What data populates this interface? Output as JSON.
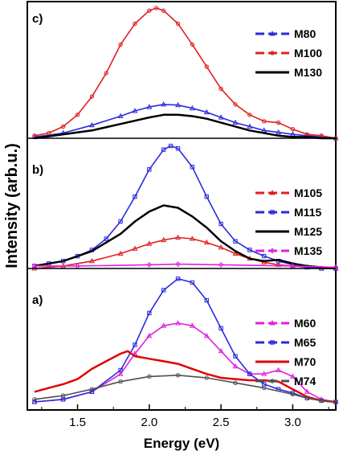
{
  "chart_data": {
    "type": "line",
    "xlabel": "Energy (eV)",
    "ylabel": "Intensity (arb.u.)",
    "xlim": [
      1.15,
      3.3
    ],
    "xticks": [
      "1.5",
      "2.0",
      "2.5",
      "3.0"
    ],
    "grid": false,
    "panels": [
      {
        "label": "c)",
        "ylim": [
          0,
          1.0
        ],
        "legend_position": "top-right",
        "series": [
          {
            "name": "M80",
            "color": "#2a2ae0",
            "style": "dash-triangle",
            "x": [
              1.2,
              1.4,
              1.6,
              1.8,
              1.9,
              2.0,
              2.1,
              2.2,
              2.3,
              2.4,
              2.5,
              2.6,
              2.7,
              2.8,
              2.9,
              3.0,
              3.1,
              3.2,
              3.3
            ],
            "y": [
              0.01,
              0.04,
              0.1,
              0.17,
              0.21,
              0.24,
              0.26,
              0.255,
              0.23,
              0.2,
              0.16,
              0.12,
              0.09,
              0.06,
              0.045,
              0.03,
              0.02,
              0.01,
              0.0
            ]
          },
          {
            "name": "M100",
            "color": "#e02020",
            "style": "dash-circle",
            "x": [
              1.2,
              1.3,
              1.4,
              1.5,
              1.6,
              1.7,
              1.8,
              1.9,
              2.0,
              2.05,
              2.1,
              2.2,
              2.3,
              2.4,
              2.5,
              2.6,
              2.7,
              2.8,
              2.9,
              3.0,
              3.1,
              3.2,
              3.3
            ],
            "y": [
              0.02,
              0.04,
              0.09,
              0.18,
              0.32,
              0.5,
              0.72,
              0.88,
              0.98,
              1.0,
              0.98,
              0.88,
              0.72,
              0.55,
              0.38,
              0.26,
              0.18,
              0.13,
              0.12,
              0.07,
              0.03,
              0.02,
              0.0
            ]
          },
          {
            "name": "M130",
            "color": "#000000",
            "style": "solid",
            "x": [
              1.2,
              1.4,
              1.6,
              1.8,
              2.0,
              2.1,
              2.2,
              2.3,
              2.4,
              2.5,
              2.6,
              2.7,
              2.8,
              2.9,
              3.0,
              3.1,
              3.2,
              3.3
            ],
            "y": [
              0.0,
              0.03,
              0.06,
              0.11,
              0.16,
              0.18,
              0.18,
              0.17,
              0.15,
              0.12,
              0.09,
              0.06,
              0.04,
              0.02,
              0.01,
              0.01,
              0.0,
              0.0
            ]
          }
        ]
      },
      {
        "label": "b)",
        "ylim": [
          0,
          1.0
        ],
        "legend_position": "top-right",
        "series": [
          {
            "name": "M105",
            "color": "#e02020",
            "style": "dash-triangle",
            "x": [
              1.2,
              1.4,
              1.6,
              1.8,
              1.9,
              2.0,
              2.1,
              2.2,
              2.3,
              2.4,
              2.5,
              2.6,
              2.7,
              2.8,
              2.9,
              3.0,
              3.1,
              3.2,
              3.3
            ],
            "y": [
              0.0,
              0.02,
              0.06,
              0.12,
              0.16,
              0.2,
              0.23,
              0.25,
              0.24,
              0.21,
              0.17,
              0.12,
              0.08,
              0.05,
              0.03,
              0.02,
              0.01,
              0.0,
              0.0
            ]
          },
          {
            "name": "M115",
            "color": "#2a2ae0",
            "style": "dash-square",
            "x": [
              1.2,
              1.3,
              1.4,
              1.5,
              1.6,
              1.7,
              1.8,
              1.9,
              2.0,
              2.1,
              2.15,
              2.2,
              2.3,
              2.4,
              2.5,
              2.6,
              2.7,
              2.8,
              2.9,
              3.0,
              3.1,
              3.2,
              3.3
            ],
            "y": [
              0.02,
              0.04,
              0.06,
              0.1,
              0.15,
              0.24,
              0.38,
              0.58,
              0.8,
              0.96,
              0.99,
              0.97,
              0.82,
              0.58,
              0.36,
              0.22,
              0.15,
              0.1,
              0.06,
              0.03,
              0.01,
              0.0,
              0.0
            ]
          },
          {
            "name": "M125",
            "color": "#000000",
            "style": "solid",
            "x": [
              1.2,
              1.4,
              1.6,
              1.8,
              1.9,
              2.0,
              2.1,
              2.2,
              2.3,
              2.4,
              2.5,
              2.6,
              2.7,
              2.8,
              2.9,
              3.0,
              3.1,
              3.2,
              3.3
            ],
            "y": [
              0.02,
              0.06,
              0.14,
              0.28,
              0.38,
              0.46,
              0.51,
              0.49,
              0.42,
              0.33,
              0.22,
              0.14,
              0.08,
              0.06,
              0.07,
              0.04,
              0.02,
              0.01,
              0.0
            ]
          },
          {
            "name": "M135",
            "color": "#e020e0",
            "style": "dash-diamond",
            "x": [
              1.2,
              1.5,
              2.0,
              2.2,
              2.5,
              3.0,
              3.3
            ],
            "y": [
              0.02,
              0.02,
              0.03,
              0.035,
              0.03,
              0.02,
              0.01
            ]
          }
        ]
      },
      {
        "label": "a)",
        "ylim": [
          0,
          1.0
        ],
        "legend_position": "top-right",
        "series": [
          {
            "name": "M60",
            "color": "#e020e0",
            "style": "dash-triangle",
            "x": [
              1.2,
              1.4,
              1.6,
              1.8,
              1.9,
              2.0,
              2.1,
              2.2,
              2.3,
              2.4,
              2.5,
              2.6,
              2.7,
              2.8,
              2.9,
              3.0,
              3.1,
              3.2,
              3.3
            ],
            "y": [
              0.0,
              0.02,
              0.08,
              0.22,
              0.38,
              0.52,
              0.6,
              0.62,
              0.6,
              0.52,
              0.4,
              0.28,
              0.22,
              0.22,
              0.25,
              0.2,
              0.08,
              0.02,
              0.0
            ]
          },
          {
            "name": "M65",
            "color": "#2a2ae0",
            "style": "dash-square",
            "x": [
              1.2,
              1.4,
              1.6,
              1.8,
              1.9,
              2.0,
              2.1,
              2.2,
              2.3,
              2.4,
              2.5,
              2.6,
              2.7,
              2.8,
              2.9,
              3.0,
              3.1,
              3.2,
              3.3
            ],
            "y": [
              0.0,
              0.02,
              0.08,
              0.25,
              0.45,
              0.7,
              0.88,
              0.97,
              0.94,
              0.8,
              0.58,
              0.36,
              0.22,
              0.14,
              0.1,
              0.07,
              0.03,
              0.01,
              0.0
            ]
          },
          {
            "name": "M70",
            "color": "#e00000",
            "style": "solid",
            "x": [
              1.2,
              1.3,
              1.4,
              1.5,
              1.6,
              1.7,
              1.8,
              1.85,
              1.9,
              2.0,
              2.1,
              2.2,
              2.3,
              2.4,
              2.5,
              2.6,
              2.7,
              2.8,
              2.9,
              3.0,
              3.1,
              3.2,
              3.3
            ],
            "y": [
              0.08,
              0.11,
              0.14,
              0.18,
              0.26,
              0.32,
              0.38,
              0.4,
              0.36,
              0.34,
              0.32,
              0.3,
              0.26,
              0.22,
              0.19,
              0.18,
              0.17,
              0.17,
              0.16,
              0.1,
              0.04,
              0.01,
              0.0
            ]
          },
          {
            "name": "M74",
            "color": "#505050",
            "style": "dash-circle",
            "x": [
              1.2,
              1.4,
              1.6,
              1.8,
              2.0,
              2.2,
              2.4,
              2.6,
              2.8,
              3.0,
              3.1,
              3.2,
              3.3
            ],
            "y": [
              0.02,
              0.05,
              0.1,
              0.16,
              0.2,
              0.21,
              0.19,
              0.15,
              0.11,
              0.06,
              0.03,
              0.01,
              0.0
            ]
          }
        ]
      }
    ]
  }
}
